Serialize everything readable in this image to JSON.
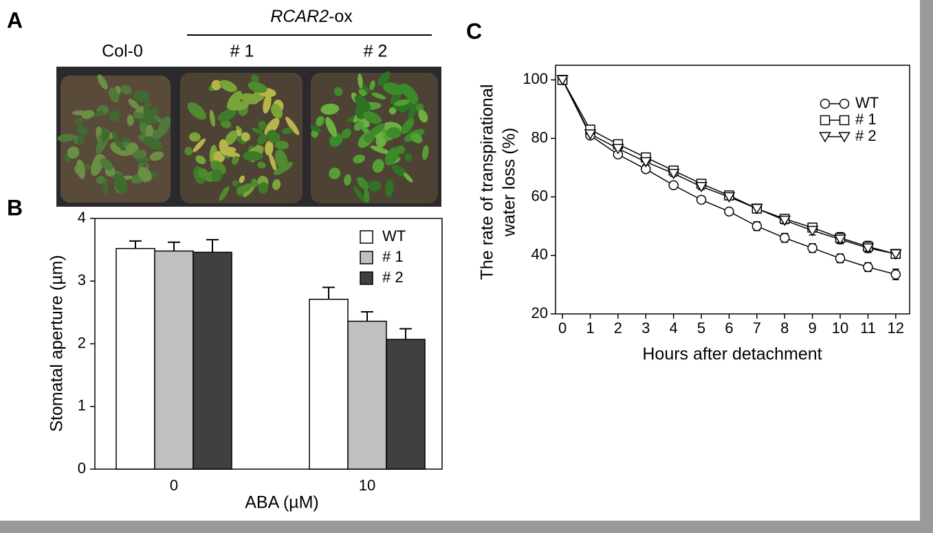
{
  "panel_a": {
    "label": "A",
    "group_label": {
      "italic": "RCAR2",
      "rest": "-ox"
    },
    "columns": [
      "Col-0",
      "# 1",
      "# 2"
    ]
  },
  "chart_data": [
    {
      "type": "bar",
      "label": "B",
      "categories": [
        "0",
        "10"
      ],
      "xlabel": "ABA (µM)",
      "ylabel": "Stomatal aperture (µm)",
      "ylim": [
        0,
        4
      ],
      "yticks": [
        0,
        1,
        2,
        3,
        4
      ],
      "legend": "top-right",
      "series": [
        {
          "name": "WT",
          "color": "#ffffff",
          "values": [
            3.52,
            2.71
          ],
          "errors": [
            0.12,
            0.19
          ]
        },
        {
          "name": "# 1",
          "color": "#c0c0c0",
          "values": [
            3.48,
            2.36
          ],
          "errors": [
            0.14,
            0.15
          ]
        },
        {
          "name": "# 2",
          "color": "#404040",
          "values": [
            3.46,
            2.07
          ],
          "errors": [
            0.2,
            0.17
          ]
        }
      ]
    },
    {
      "type": "line",
      "label": "C",
      "xlabel": "Hours after detachment",
      "ylabel": [
        "The rate of transpirational",
        "water loss (%)"
      ],
      "x": [
        0,
        1,
        2,
        3,
        4,
        5,
        6,
        7,
        8,
        9,
        10,
        11,
        12
      ],
      "xlim": [
        -0.25,
        12.5
      ],
      "xticks": [
        0,
        1,
        2,
        3,
        4,
        5,
        6,
        7,
        8,
        9,
        10,
        11,
        12
      ],
      "ylim": [
        20,
        105
      ],
      "yticks": [
        20,
        40,
        60,
        80,
        100
      ],
      "legend": "top-right",
      "series": [
        {
          "name": "WT",
          "marker": "circle",
          "color": "#000000",
          "values": [
            100,
            81,
            74.5,
            69.5,
            64,
            59,
            55,
            50,
            46,
            42.5,
            39,
            36,
            33.5
          ],
          "errors": [
            0.5,
            1,
            1,
            1,
            1,
            1,
            1,
            1.5,
            1.5,
            1.5,
            1.5,
            1.5,
            1.8
          ]
        },
        {
          "name": "# 1",
          "marker": "square",
          "color": "#000000",
          "values": [
            100,
            83,
            78,
            73.5,
            69,
            64.5,
            60.5,
            56,
            52.5,
            49.5,
            46,
            43,
            40.5
          ],
          "errors": [
            0.5,
            1,
            1,
            1,
            1,
            1,
            1,
            1,
            1.2,
            1.5,
            1.8,
            1.8,
            1.5
          ]
        },
        {
          "name": "# 2",
          "marker": "triangle-down",
          "color": "#000000",
          "values": [
            100,
            81.5,
            76.5,
            72,
            68,
            63.5,
            60,
            56,
            52,
            48.5,
            45.5,
            42.5,
            40.5
          ],
          "errors": [
            0.5,
            1,
            1,
            1,
            1,
            1,
            1,
            1,
            1.2,
            1.5,
            1.5,
            1.5,
            1.5
          ]
        }
      ]
    }
  ]
}
